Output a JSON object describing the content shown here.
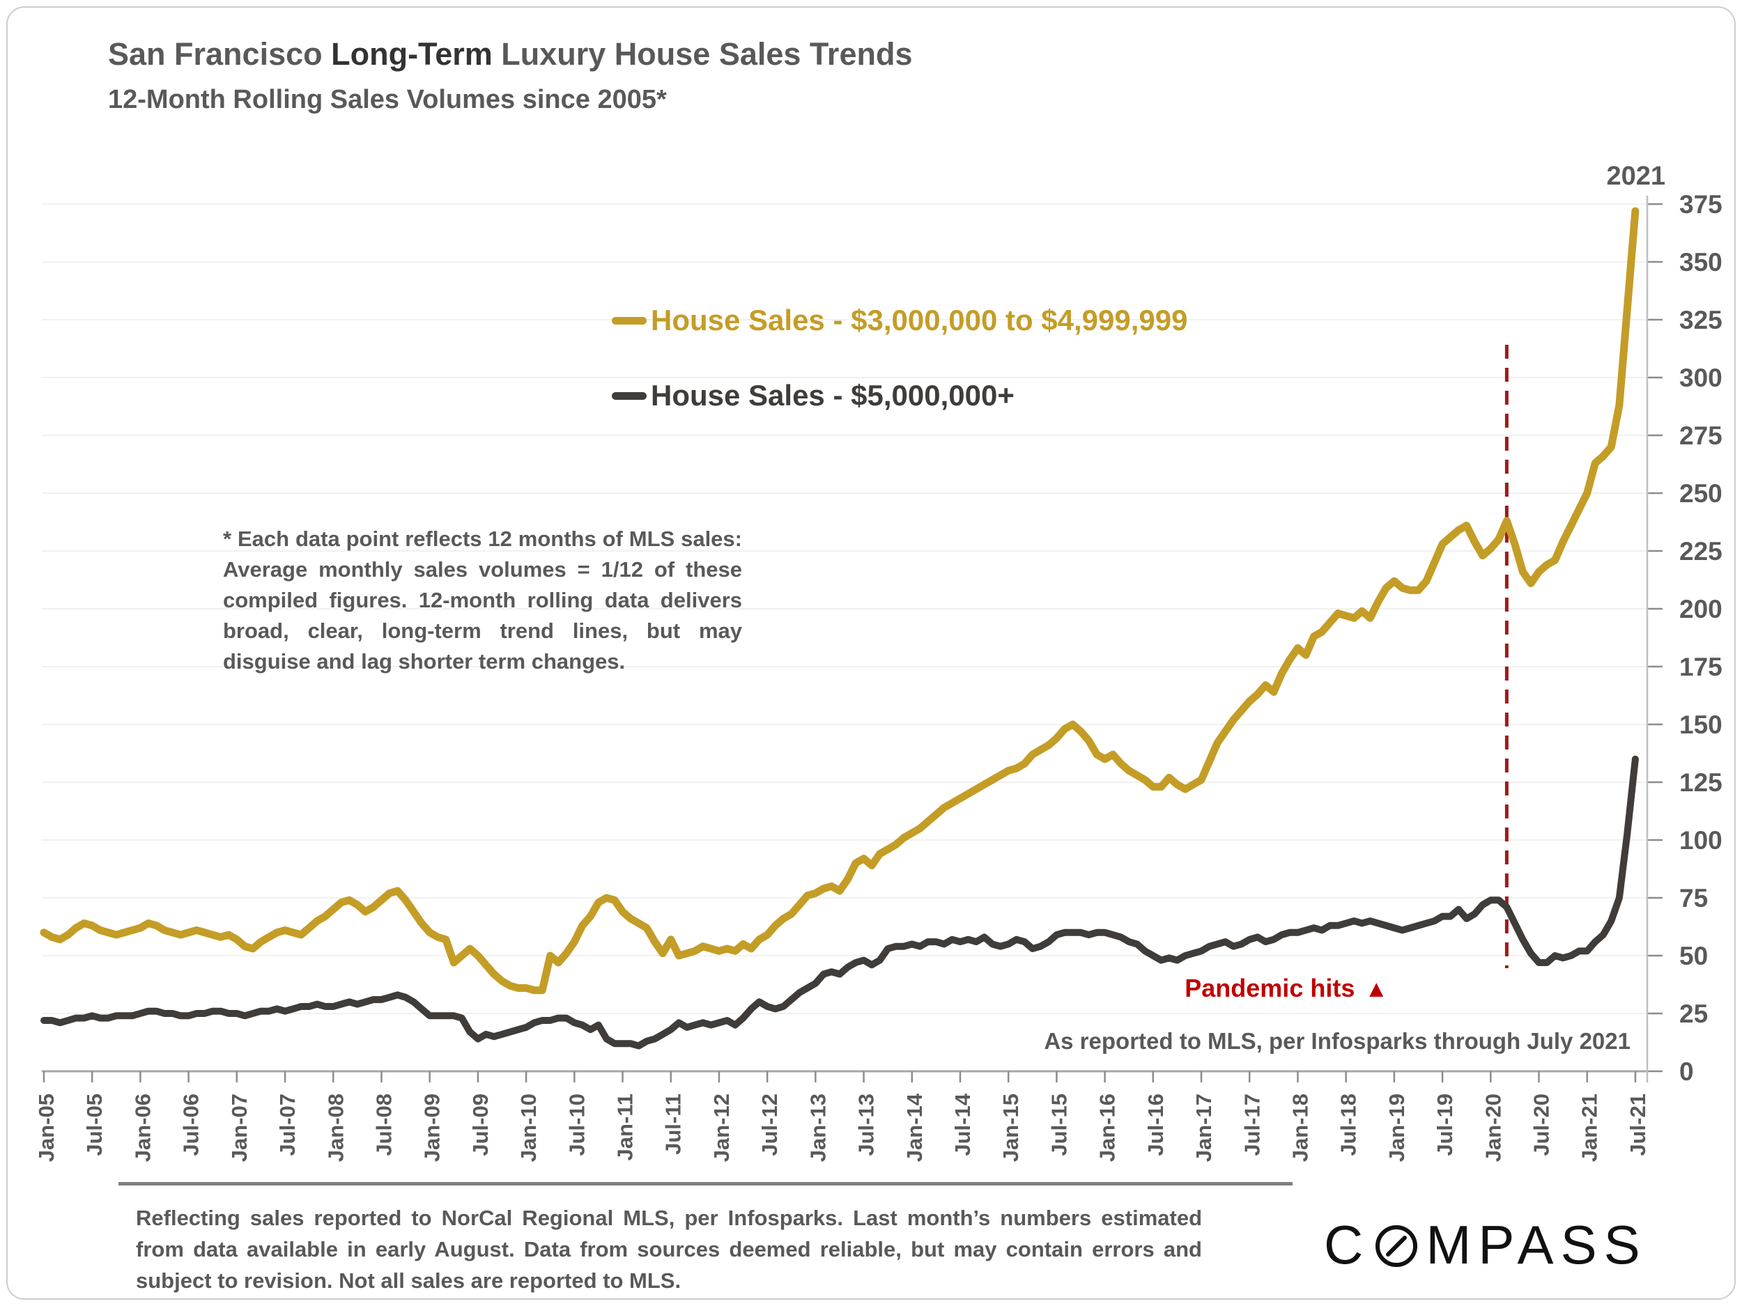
{
  "header": {
    "title_prefix": "San Francisco ",
    "title_emph": "Long-Term",
    "title_suffix": " Luxury House Sales Trends",
    "subtitle": "12-Month Rolling Sales Volumes since 2005*",
    "year_label": "2021"
  },
  "note": "* Each data point reflects 12 months of MLS sales:  Average monthly sales volumes = 1/12 of these compiled figures. 12-month rolling data delivers broad, clear, long-term trend lines, but may disguise and lag shorter term changes.",
  "annotations": {
    "pandemic_label": "Pandemic hits",
    "pandemic_marker": "▲",
    "pandemic_color": "#C00000",
    "source_note": "As reported to MLS, per Infosparks through July 2021"
  },
  "footer": {
    "text": "Reflecting sales reported to NorCal Regional MLS, per Infosparks. Last month’s numbers estimated from data available in early August. Data from sources deemed reliable, but may contain errors and subject to revision. Not all sales are reported to MLS.",
    "logo_left": "C",
    "logo_right": "MPASS"
  },
  "chart_data": {
    "type": "line",
    "title": "San Francisco Long-Term Luxury House Sales Trends",
    "subtitle": "12-Month Rolling Sales Volumes since 2005*",
    "xlabel": "",
    "ylabel": "",
    "ylim": [
      0,
      375
    ],
    "y_tick_step": 25,
    "grid": true,
    "legend_position": "top-center",
    "x_unit": "month",
    "x_range": [
      "Jan-2005",
      "Jul-2021"
    ],
    "x_tick_labels": [
      "Jan-05",
      "Jul-05",
      "Jan-06",
      "Jul-06",
      "Jan-07",
      "Jul-07",
      "Jan-08",
      "Jul-08",
      "Jan-09",
      "Jul-09",
      "Jan-10",
      "Jul-10",
      "Jan-11",
      "Jul-11",
      "Jan-12",
      "Jul-12",
      "Jan-13",
      "Jul-13",
      "Jan-14",
      "Jul-14",
      "Jan-15",
      "Jul-15",
      "Jan-16",
      "Jul-16",
      "Jan-17",
      "Jul-17",
      "Jan-18",
      "Jul-18",
      "Jan-19",
      "Jul-19",
      "Jan-20",
      "Jul-20",
      "Jan-21",
      "Jul-21"
    ],
    "pandemic_line": {
      "x_label": "Mar-20",
      "month_index": 182,
      "color": "#9E1B1B"
    },
    "series": [
      {
        "name": "House Sales - $3,000,000 to $4,999,999",
        "color": "#C49D27",
        "width": 11,
        "values": [
          60,
          58,
          57,
          59,
          62,
          64,
          63,
          61,
          60,
          59,
          60,
          61,
          62,
          64,
          63,
          61,
          60,
          59,
          60,
          61,
          60,
          59,
          58,
          59,
          57,
          54,
          53,
          56,
          58,
          60,
          61,
          60,
          59,
          62,
          65,
          67,
          70,
          73,
          74,
          72,
          69,
          71,
          74,
          77,
          78,
          74,
          69,
          64,
          60,
          58,
          57,
          47,
          50,
          53,
          50,
          46,
          42,
          39,
          37,
          36,
          36,
          35,
          35,
          50,
          47,
          51,
          56,
          63,
          67,
          73,
          75,
          74,
          69,
          66,
          64,
          62,
          56,
          51,
          57,
          50,
          51,
          52,
          54,
          53,
          52,
          53,
          52,
          55,
          53,
          57,
          59,
          63,
          66,
          68,
          72,
          76,
          77,
          79,
          80,
          78,
          83,
          90,
          92,
          89,
          94,
          96,
          98,
          101,
          103,
          105,
          108,
          111,
          114,
          116,
          118,
          120,
          122,
          124,
          126,
          128,
          130,
          131,
          133,
          137,
          139,
          141,
          144,
          148,
          150,
          147,
          143,
          137,
          135,
          137,
          133,
          130,
          128,
          126,
          123,
          123,
          127,
          124,
          122,
          124,
          126,
          134,
          142,
          147,
          152,
          156,
          160,
          163,
          167,
          164,
          172,
          178,
          183,
          180,
          188,
          190,
          194,
          198,
          197,
          196,
          199,
          196,
          203,
          209,
          212,
          209,
          208,
          208,
          212,
          220,
          228,
          231,
          234,
          236,
          229,
          223,
          226,
          230,
          238,
          228,
          216,
          211,
          216,
          219,
          221,
          229,
          236,
          243,
          250,
          263,
          266,
          270,
          288,
          330,
          372
        ]
      },
      {
        "name": "House Sales - $5,000,000+",
        "color": "#3F3C3A",
        "width": 10,
        "values": [
          22,
          22,
          21,
          22,
          23,
          23,
          24,
          23,
          23,
          24,
          24,
          24,
          25,
          26,
          26,
          25,
          25,
          24,
          24,
          25,
          25,
          26,
          26,
          25,
          25,
          24,
          25,
          26,
          26,
          27,
          26,
          27,
          28,
          28,
          29,
          28,
          28,
          29,
          30,
          29,
          30,
          31,
          31,
          32,
          33,
          32,
          30,
          27,
          24,
          24,
          24,
          24,
          23,
          17,
          14,
          16,
          15,
          16,
          17,
          18,
          19,
          21,
          22,
          22,
          23,
          23,
          21,
          20,
          18,
          20,
          14,
          12,
          12,
          12,
          11,
          13,
          14,
          16,
          18,
          21,
          19,
          20,
          21,
          20,
          21,
          22,
          20,
          23,
          27,
          30,
          28,
          27,
          28,
          31,
          34,
          36,
          38,
          42,
          43,
          42,
          45,
          47,
          48,
          46,
          48,
          53,
          54,
          54,
          55,
          54,
          56,
          56,
          55,
          57,
          56,
          57,
          56,
          58,
          55,
          54,
          55,
          57,
          56,
          53,
          54,
          56,
          59,
          60,
          60,
          60,
          59,
          60,
          60,
          59,
          58,
          56,
          55,
          52,
          50,
          48,
          49,
          48,
          50,
          51,
          52,
          54,
          55,
          56,
          54,
          55,
          57,
          58,
          56,
          57,
          59,
          60,
          60,
          61,
          62,
          61,
          63,
          63,
          64,
          65,
          64,
          65,
          64,
          63,
          62,
          61,
          62,
          63,
          64,
          65,
          67,
          67,
          70,
          66,
          68,
          72,
          74,
          74,
          71,
          64,
          57,
          51,
          47,
          47,
          50,
          49,
          50,
          52,
          52,
          56,
          59,
          65,
          75,
          103,
          135
        ]
      }
    ]
  }
}
